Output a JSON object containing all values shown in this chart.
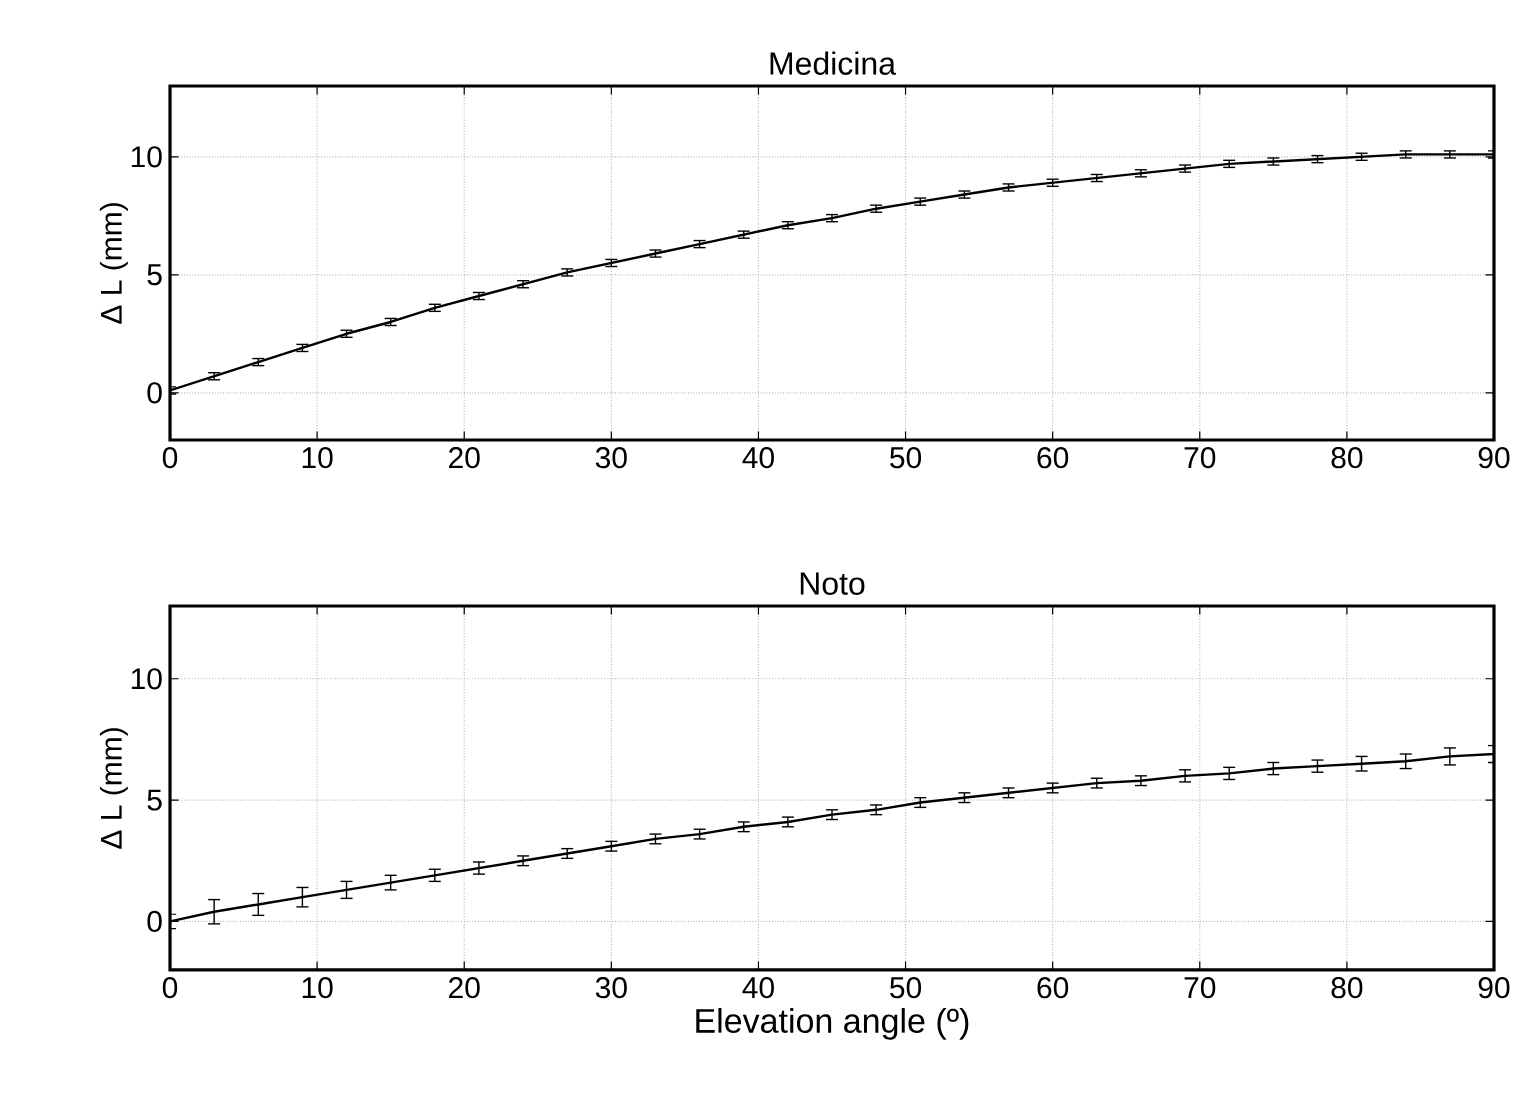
{
  "chart_data": [
    {
      "type": "line",
      "title": "Medicina",
      "ylabel": "Δ L (mm)",
      "x": [
        0,
        3,
        6,
        9,
        12,
        15,
        18,
        21,
        24,
        27,
        30,
        33,
        36,
        39,
        42,
        45,
        48,
        51,
        54,
        57,
        60,
        63,
        66,
        69,
        72,
        75,
        78,
        81,
        84,
        87,
        90
      ],
      "values": [
        0.1,
        0.7,
        1.3,
        1.9,
        2.5,
        3.0,
        3.6,
        4.1,
        4.6,
        5.1,
        5.5,
        5.9,
        6.3,
        6.7,
        7.1,
        7.4,
        7.8,
        8.1,
        8.4,
        8.7,
        8.9,
        9.1,
        9.3,
        9.5,
        9.7,
        9.8,
        9.9,
        10.0,
        10.1,
        10.1,
        10.1
      ],
      "errors": [
        0.15,
        0.15,
        0.15,
        0.15,
        0.15,
        0.15,
        0.15,
        0.15,
        0.15,
        0.15,
        0.15,
        0.15,
        0.15,
        0.15,
        0.15,
        0.15,
        0.15,
        0.15,
        0.15,
        0.15,
        0.15,
        0.15,
        0.15,
        0.15,
        0.15,
        0.15,
        0.15,
        0.15,
        0.15,
        0.15,
        0.15
      ],
      "color": "#000000",
      "marker": "none",
      "line_style": "solid",
      "grid": true,
      "xlim": [
        0,
        90
      ],
      "xticks": [
        0,
        10,
        20,
        30,
        40,
        50,
        60,
        70,
        80,
        90
      ],
      "ylim": [
        -2,
        13
      ],
      "yticks": [
        0,
        5,
        10
      ]
    },
    {
      "type": "line",
      "title": "Noto",
      "xlabel": "Elevation angle (º)",
      "ylabel": "Δ L (mm)",
      "x": [
        0,
        3,
        6,
        9,
        12,
        15,
        18,
        21,
        24,
        27,
        30,
        33,
        36,
        39,
        42,
        45,
        48,
        51,
        54,
        57,
        60,
        63,
        66,
        69,
        72,
        75,
        78,
        81,
        84,
        87,
        90
      ],
      "values": [
        0.0,
        0.4,
        0.7,
        1.0,
        1.3,
        1.6,
        1.9,
        2.2,
        2.5,
        2.8,
        3.1,
        3.4,
        3.6,
        3.9,
        4.1,
        4.4,
        4.6,
        4.9,
        5.1,
        5.3,
        5.5,
        5.7,
        5.8,
        6.0,
        6.1,
        6.3,
        6.4,
        6.5,
        6.6,
        6.8,
        6.9
      ],
      "errors": [
        0.3,
        0.5,
        0.45,
        0.4,
        0.35,
        0.3,
        0.25,
        0.25,
        0.2,
        0.2,
        0.2,
        0.2,
        0.2,
        0.2,
        0.2,
        0.2,
        0.2,
        0.2,
        0.2,
        0.2,
        0.2,
        0.2,
        0.2,
        0.25,
        0.25,
        0.25,
        0.25,
        0.3,
        0.3,
        0.35,
        0.35
      ],
      "color": "#000000",
      "marker": "none",
      "line_style": "solid",
      "grid": true,
      "xlim": [
        0,
        90
      ],
      "xticks": [
        0,
        10,
        20,
        30,
        40,
        50,
        60,
        70,
        80,
        90
      ],
      "ylim": [
        -2,
        13
      ],
      "yticks": [
        0,
        5,
        10
      ]
    }
  ]
}
